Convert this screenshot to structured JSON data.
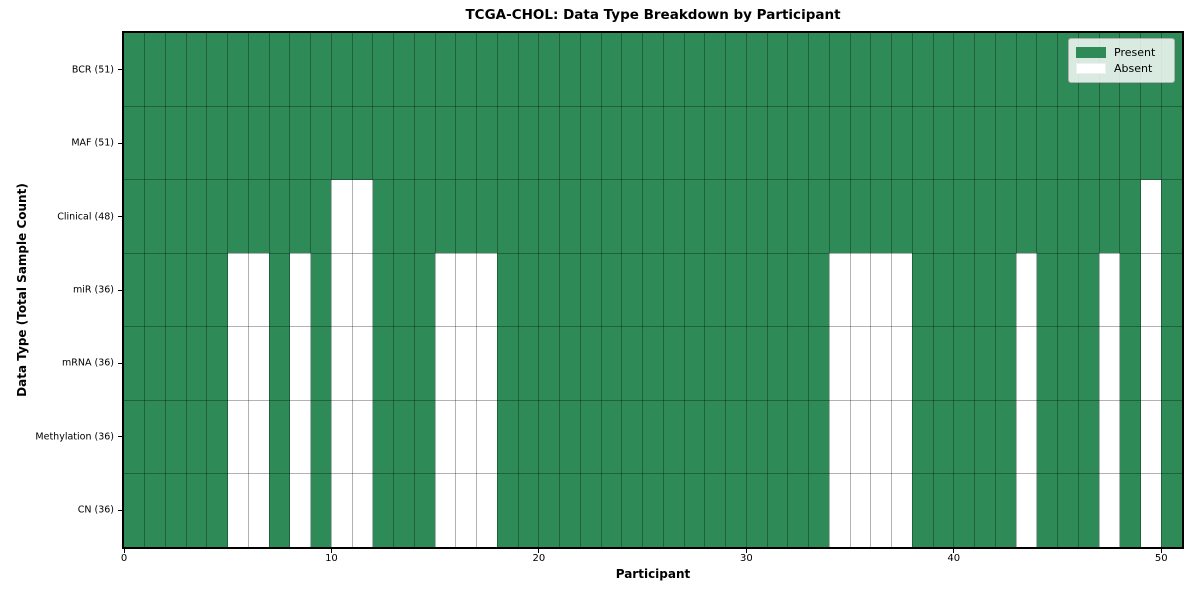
{
  "title": "TCGA-CHOL: Data Type Breakdown by Participant",
  "chart_data": {
    "type": "heatmap",
    "title": "TCGA-CHOL: Data Type Breakdown by Participant",
    "xlabel": "Participant",
    "ylabel": "Data Type (Total Sample Count)",
    "n_participants": 51,
    "xlim": [
      0,
      51
    ],
    "x_ticks": [
      0,
      10,
      20,
      30,
      40,
      50
    ],
    "grid": true,
    "legend_position": "upper right",
    "legend": [
      {
        "label": "Present",
        "color": "#2E8B57"
      },
      {
        "label": "Absent",
        "color": "#FFFFFF"
      }
    ],
    "colors": {
      "present": "#2E8B57",
      "absent": "#FFFFFF",
      "gridline": "rgba(0,0,0,0.3)"
    },
    "rows": [
      {
        "label": "BCR (51)",
        "data_type": "BCR",
        "total_samples": 51,
        "absent_participants": []
      },
      {
        "label": "MAF (51)",
        "data_type": "MAF",
        "total_samples": 51,
        "absent_participants": []
      },
      {
        "label": "Clinical (48)",
        "data_type": "Clinical",
        "total_samples": 48,
        "absent_participants": [
          10,
          11,
          49
        ]
      },
      {
        "label": "miR (36)",
        "data_type": "miR",
        "total_samples": 36,
        "absent_participants": [
          5,
          6,
          8,
          10,
          11,
          15,
          16,
          17,
          34,
          35,
          36,
          37,
          43,
          47,
          49
        ]
      },
      {
        "label": "mRNA (36)",
        "data_type": "mRNA",
        "total_samples": 36,
        "absent_participants": [
          5,
          6,
          8,
          10,
          11,
          15,
          16,
          17,
          34,
          35,
          36,
          37,
          43,
          47,
          49
        ]
      },
      {
        "label": "Methylation (36)",
        "data_type": "Methylation",
        "total_samples": 36,
        "absent_participants": [
          5,
          6,
          8,
          10,
          11,
          15,
          16,
          17,
          34,
          35,
          36,
          37,
          43,
          47,
          49
        ]
      },
      {
        "label": "CN (36)",
        "data_type": "CN",
        "total_samples": 36,
        "absent_participants": [
          5,
          6,
          8,
          10,
          11,
          15,
          16,
          17,
          34,
          35,
          36,
          37,
          43,
          47,
          49
        ]
      }
    ]
  }
}
